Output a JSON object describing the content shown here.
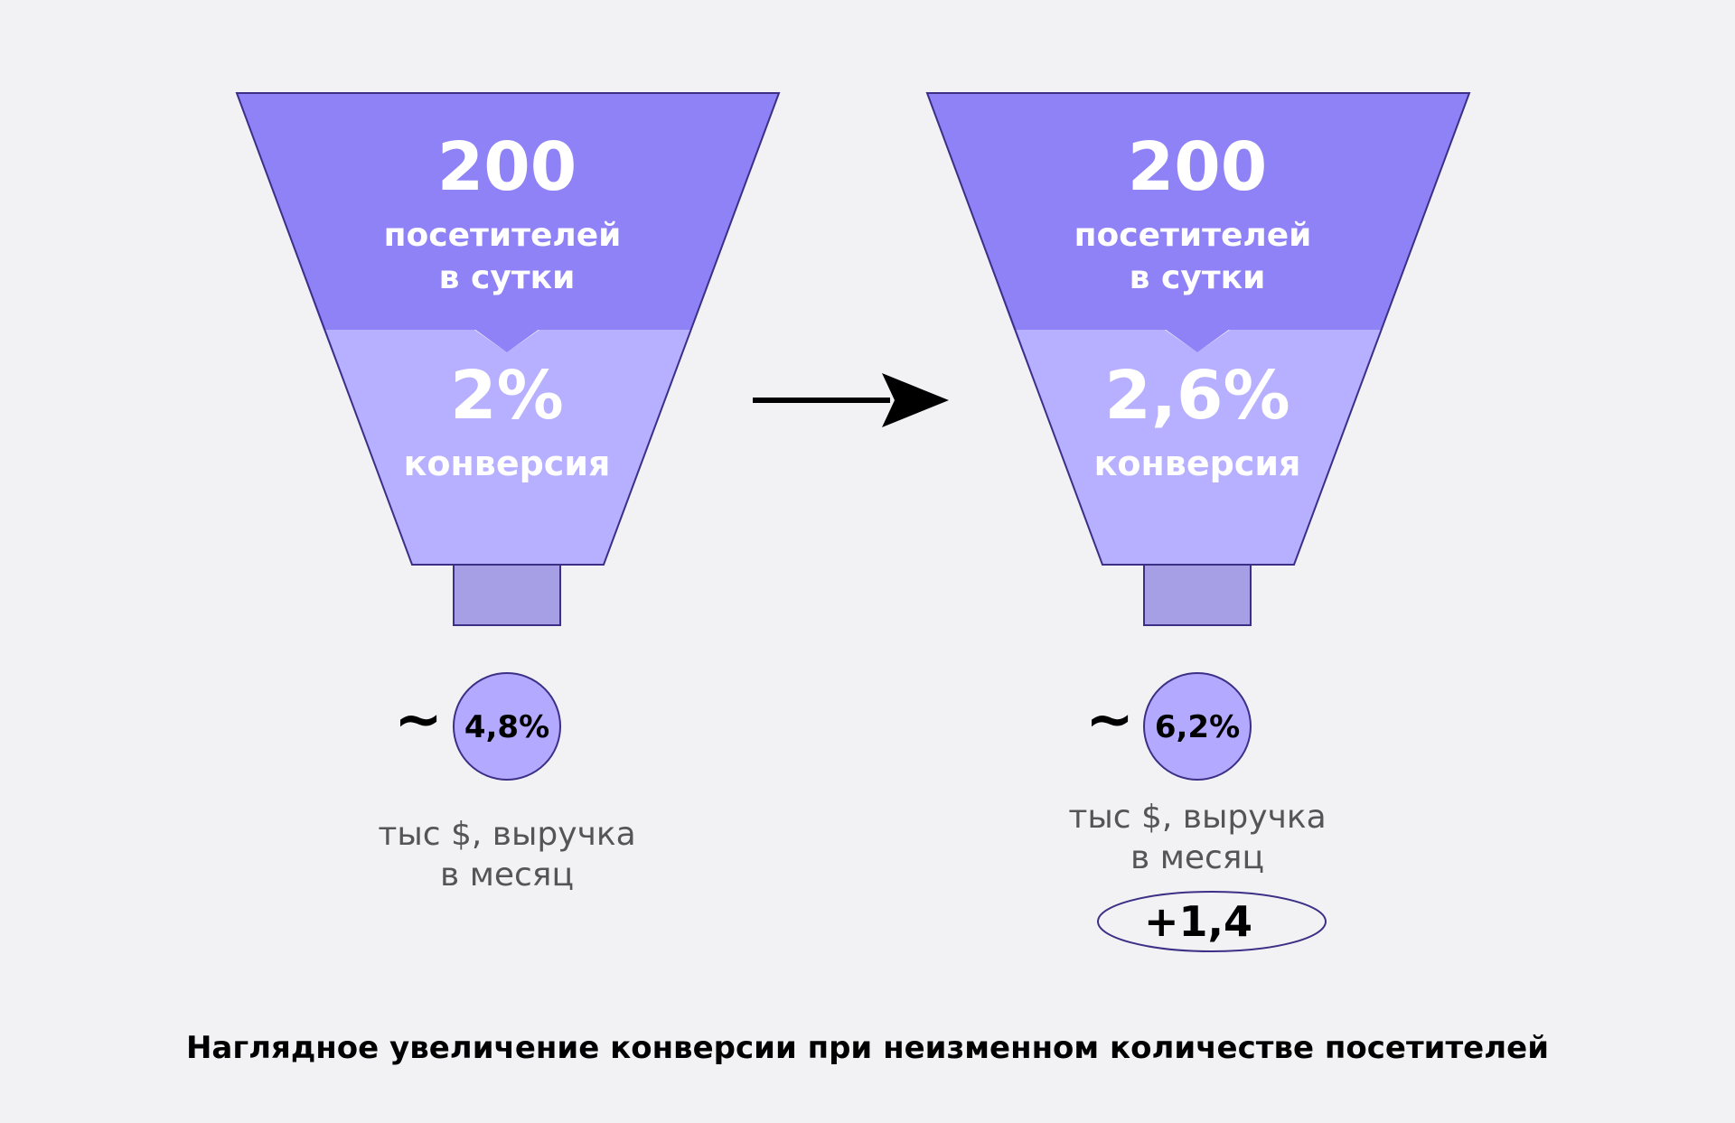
{
  "funnels": [
    {
      "visitors_value": "200",
      "visitors_line1": "посетителей",
      "visitors_line2": "в сутки",
      "conversion_value": "2%",
      "conversion_label": "конверсия",
      "approx_symbol": "~",
      "revenue_value": "4,8%",
      "revenue_line1": "тыс $, выручка",
      "revenue_line2": "в месяц"
    },
    {
      "visitors_value": "200",
      "visitors_line1": "посетителей",
      "visitors_line2": "в сутки",
      "conversion_value": "2,6%",
      "conversion_label": "конверсия",
      "approx_symbol": "~",
      "revenue_value": "6,2%",
      "revenue_line1": "тыс $, выручка",
      "revenue_line2": "в месяц",
      "increase_badge": "+1,4"
    }
  ],
  "caption": "Наглядное увеличение конверсии при неизменном количестве посетителей",
  "colors": {
    "top_section": "#8f82f6",
    "bottom_section": "#b7afff",
    "spout": "#a69fe6",
    "circle": "#b3a9ff",
    "outline": "#3b2f86",
    "arrow": "#000000"
  }
}
